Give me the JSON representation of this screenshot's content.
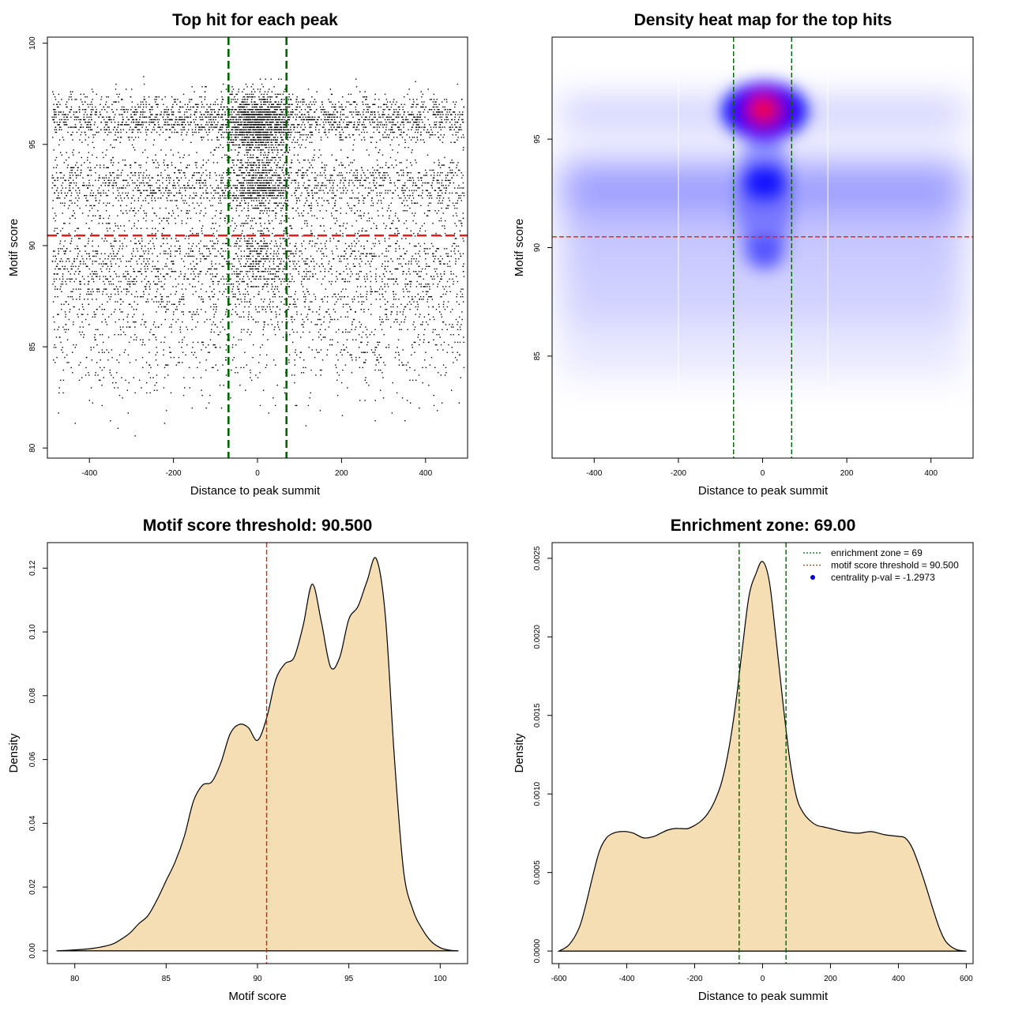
{
  "colors": {
    "threshold_line": "#e41a1c",
    "zone_line": "#006400",
    "density_fill": "#f5deb3",
    "points": "#000000",
    "heat_low": "#ffffff",
    "heat_mid": "#0000ff",
    "heat_high": "#ff0000"
  },
  "chart_data": [
    {
      "id": "scatter",
      "type": "scatter",
      "title": "Top hit for each peak",
      "xlabel": "Distance to peak summit",
      "ylabel": "Motif score",
      "xlim": [
        -500,
        500
      ],
      "ylim": [
        79.5,
        100.3
      ],
      "xticks": [
        -400,
        -200,
        0,
        200,
        400
      ],
      "yticks": [
        80,
        85,
        90,
        95,
        100
      ],
      "hline": 90.5,
      "vlines": [
        -69,
        69
      ],
      "point_count_note": "dense cloud of top hits; concentrated near x = 0 and y = 92-97",
      "series": [
        {
          "component": "uniform",
          "weight": 0.78,
          "x_range": [
            -490,
            490
          ],
          "y_distribution": [
            {
              "center": 96.3,
              "sd": 0.6,
              "weight": 0.3
            },
            {
              "center": 93.0,
              "sd": 0.8,
              "weight": 0.25
            },
            {
              "center": 89.5,
              "sd": 1.2,
              "weight": 0.2
            },
            {
              "center": 87.5,
              "sd": 1.4,
              "weight": 0.17
            },
            {
              "center": 84.5,
              "sd": 1.3,
              "weight": 0.08
            }
          ]
        },
        {
          "component": "central",
          "weight": 0.22,
          "x_center": 0,
          "x_sd": 38,
          "y_distribution": [
            {
              "center": 96.0,
              "sd": 0.8,
              "weight": 0.62
            },
            {
              "center": 93.0,
              "sd": 0.7,
              "weight": 0.26
            },
            {
              "center": 89.5,
              "sd": 1.0,
              "weight": 0.12
            }
          ]
        }
      ]
    },
    {
      "id": "heatmap",
      "type": "heatmap",
      "title": "Density heat map for the top hits",
      "xlabel": "Distance to peak summit",
      "ylabel": "Motif score",
      "xlim": [
        -500,
        500
      ],
      "ylim": [
        80.3,
        99.7
      ],
      "xticks": [
        -400,
        -200,
        0,
        200,
        400
      ],
      "yticks": [
        85,
        90,
        95
      ],
      "hline": 90.5,
      "vlines": [
        -69,
        69
      ],
      "density_peaks": [
        {
          "x": 5,
          "y": 96.3,
          "relative_density": 1.0
        },
        {
          "x": 5,
          "y": 93.0,
          "relative_density": 0.6
        },
        {
          "x": 5,
          "y": 90.0,
          "relative_density": 0.35
        },
        {
          "x": 0,
          "y": 92.5,
          "relative_density": 0.25,
          "note": "horizontal band across full width"
        }
      ]
    },
    {
      "id": "score_density",
      "type": "area",
      "title": "Motif score threshold: 90.500",
      "xlabel": "Motif score",
      "ylabel": "Density",
      "xlim": [
        78.5,
        101.5
      ],
      "ylim": [
        -0.004,
        0.128
      ],
      "xticks": [
        80,
        85,
        90,
        95,
        100
      ],
      "yticks": [
        0.0,
        0.02,
        0.04,
        0.06,
        0.08,
        0.1,
        0.12
      ],
      "ytick_labels": [
        "0.00",
        "0.02",
        "0.04",
        "0.06",
        "0.08",
        "0.10",
        "0.12"
      ],
      "vline": 90.5,
      "x": [
        79.0,
        80.0,
        81.0,
        82.0,
        82.5,
        83.0,
        83.5,
        84.0,
        84.5,
        85.0,
        85.5,
        86.0,
        86.5,
        87.0,
        87.5,
        88.0,
        88.5,
        89.0,
        89.5,
        90.0,
        90.5,
        91.0,
        91.5,
        92.0,
        92.5,
        93.0,
        93.5,
        94.0,
        94.5,
        95.0,
        95.5,
        96.0,
        96.5,
        97.0,
        97.5,
        98.0,
        98.5,
        99.0,
        99.5,
        100.0,
        100.5,
        101.0
      ],
      "y": [
        0.0,
        0.0003,
        0.0008,
        0.002,
        0.0035,
        0.0055,
        0.0085,
        0.011,
        0.016,
        0.022,
        0.028,
        0.036,
        0.047,
        0.052,
        0.053,
        0.059,
        0.068,
        0.071,
        0.07,
        0.066,
        0.073,
        0.085,
        0.09,
        0.092,
        0.102,
        0.115,
        0.103,
        0.089,
        0.092,
        0.104,
        0.108,
        0.116,
        0.123,
        0.105,
        0.06,
        0.025,
        0.013,
        0.007,
        0.003,
        0.001,
        0.0002,
        0.0
      ]
    },
    {
      "id": "distance_density",
      "type": "area",
      "title": "Enrichment zone: 69.00",
      "xlabel": "Distance to peak summit",
      "ylabel": "Density",
      "xlim": [
        -620,
        620
      ],
      "ylim": [
        -8e-05,
        0.0026
      ],
      "xticks": [
        -600,
        -400,
        -200,
        0,
        200,
        400,
        600
      ],
      "yticks": [
        0.0,
        0.0005,
        0.001,
        0.0015,
        0.002,
        0.0025
      ],
      "ytick_labels": [
        "0.0000",
        "0.0005",
        "0.0010",
        "0.0015",
        "0.0020",
        "0.0025"
      ],
      "vlines": [
        -69,
        69
      ],
      "x": [
        -600,
        -570,
        -540,
        -520,
        -500,
        -480,
        -460,
        -440,
        -420,
        -400,
        -380,
        -350,
        -320,
        -300,
        -280,
        -260,
        -240,
        -220,
        -200,
        -180,
        -160,
        -140,
        -120,
        -100,
        -80,
        -60,
        -40,
        -20,
        0,
        20,
        40,
        60,
        80,
        100,
        120,
        140,
        160,
        180,
        200,
        240,
        280,
        320,
        360,
        400,
        420,
        440,
        460,
        480,
        500,
        520,
        540,
        570,
        600
      ],
      "y": [
        0.0,
        4e-05,
        0.00015,
        0.0003,
        0.00048,
        0.00064,
        0.00072,
        0.00075,
        0.00076,
        0.00076,
        0.00075,
        0.00072,
        0.00073,
        0.00075,
        0.00077,
        0.00078,
        0.00078,
        0.00078,
        0.0008,
        0.00083,
        0.00088,
        0.00096,
        0.00108,
        0.00128,
        0.00156,
        0.00192,
        0.00226,
        0.0024,
        0.00248,
        0.00235,
        0.00198,
        0.00158,
        0.00122,
        0.00098,
        0.00088,
        0.00083,
        0.0008,
        0.00079,
        0.00078,
        0.00076,
        0.00075,
        0.00076,
        0.00074,
        0.00073,
        0.00072,
        0.00066,
        0.00055,
        0.00042,
        0.00028,
        0.00015,
        6e-05,
        1e-05,
        0.0
      ],
      "legend": {
        "position": "top-right",
        "entries": [
          {
            "label": "enrichment zone = 69",
            "style": "dotted",
            "color": "#006400"
          },
          {
            "label": "motif score threshold = 90.500",
            "style": "dotted",
            "color": "#e41a1c"
          },
          {
            "label": "centrality p-val = -1.2973",
            "style": "point",
            "color": "#0000cc"
          }
        ]
      }
    }
  ]
}
